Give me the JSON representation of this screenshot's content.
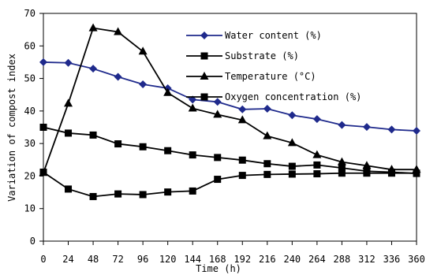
{
  "chart_data": {
    "type": "line",
    "x": [
      0,
      24,
      48,
      72,
      96,
      120,
      144,
      168,
      192,
      216,
      240,
      264,
      288,
      312,
      336,
      360
    ],
    "xlabel": "Time (h)",
    "ylabel": "Variation of compost index",
    "xlim": [
      0,
      360
    ],
    "ylim": [
      0,
      70
    ],
    "yticks": [
      0,
      10,
      20,
      30,
      40,
      50,
      60,
      70
    ],
    "grid": false,
    "legend_position": "top-right",
    "series": [
      {
        "name": "Water content (%)",
        "marker": "diamond",
        "color": "#1f2a8c",
        "values": [
          55.0,
          54.8,
          53.0,
          50.5,
          48.2,
          47.0,
          43.5,
          42.8,
          40.5,
          40.7,
          38.7,
          37.5,
          35.7,
          35.1,
          34.3,
          33.9
        ]
      },
      {
        "name": "Substrate (%)",
        "marker": "square",
        "color": "#000000",
        "values": [
          35.0,
          33.2,
          32.6,
          29.9,
          29.0,
          27.8,
          26.5,
          25.7,
          24.9,
          23.8,
          23.0,
          23.4,
          22.5,
          21.5,
          21.2,
          20.8
        ]
      },
      {
        "name": "Temperature (°C)",
        "marker": "triangle",
        "color": "#000000",
        "values": [
          21.0,
          42.3,
          65.5,
          64.3,
          58.3,
          45.6,
          40.8,
          38.9,
          37.2,
          32.3,
          30.2,
          26.5,
          24.3,
          23.2,
          22.0,
          22.0
        ]
      },
      {
        "name": "Oxygen concentration (%)",
        "marker": "square",
        "color": "#000000",
        "values": [
          21.2,
          16.0,
          13.7,
          14.5,
          14.3,
          15.1,
          15.4,
          19.0,
          20.2,
          20.5,
          20.6,
          20.7,
          20.9,
          20.9,
          20.9,
          20.9
        ]
      }
    ]
  }
}
